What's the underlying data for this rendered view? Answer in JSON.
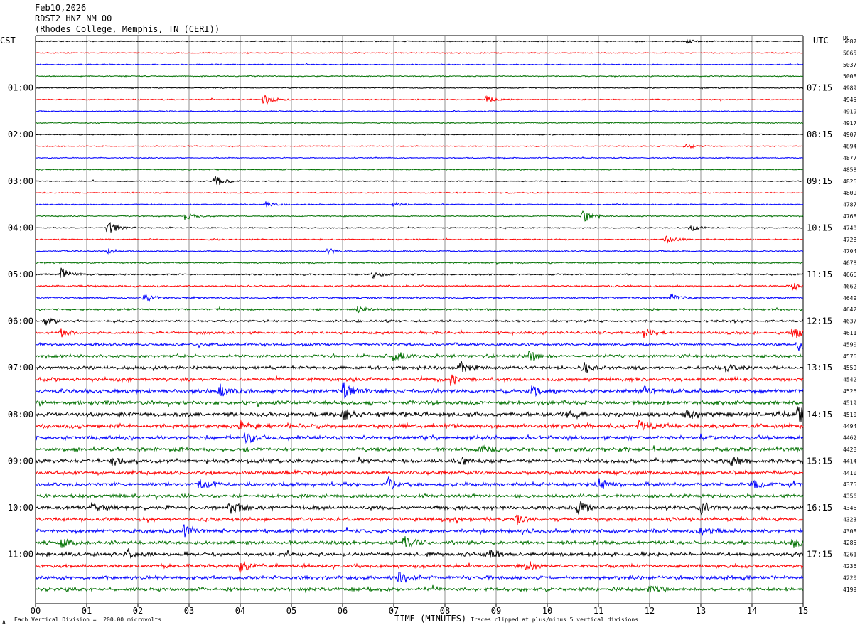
{
  "header": {
    "date": "Feb10,2026",
    "station": "RDST2 HNZ NM 00",
    "location": "(Rhodes College, Memphis, TN (CERI))"
  },
  "labels": {
    "left_zone": "CST",
    "right_zone": "UTC",
    "dc_header": "DC",
    "xlabel": "TIME (MINUTES)",
    "scale_note": "Each Vertical Division =  200.00 microvolts",
    "clip_note": "Traces clipped at plus/minus 5 vertical divisions",
    "corner_mark": "A"
  },
  "colors": {
    "cycle": [
      "#000000",
      "#ff0000",
      "#0000ff",
      "#007000"
    ],
    "grid": "#909090"
  },
  "chart_data": {
    "type": "line",
    "title": "Feb10,2026 RDST2 HNZ NM 00",
    "xlabel": "TIME (MINUTES)",
    "xlim": [
      0,
      15
    ],
    "x_ticks": [
      "00",
      "01",
      "02",
      "03",
      "04",
      "05",
      "06",
      "07",
      "08",
      "09",
      "10",
      "11",
      "12",
      "13",
      "14",
      "15"
    ],
    "rows_per_hour": 4,
    "left_hour_labels": [
      "01:00",
      "02:00",
      "03:00",
      "04:00",
      "05:00",
      "06:00",
      "07:00",
      "08:00",
      "09:00",
      "10:00",
      "11:00"
    ],
    "right_hour_labels": [
      "07:15",
      "08:15",
      "09:15",
      "10:15",
      "11:15",
      "12:15",
      "13:15",
      "14:15",
      "15:15",
      "16:15",
      "17:15"
    ],
    "dc_offsets": [
      5087,
      5065,
      5037,
      5008,
      4989,
      4945,
      4919,
      4917,
      4907,
      4894,
      4877,
      4858,
      4826,
      4809,
      4787,
      4768,
      4748,
      4728,
      4704,
      4678,
      4666,
      4662,
      4649,
      4642,
      4637,
      4611,
      4590,
      4576,
      4559,
      4542,
      4526,
      4519,
      4510,
      4494,
      4462,
      4428,
      4414,
      4410,
      4375,
      4356,
      4346,
      4323,
      4308,
      4285,
      4261,
      4236,
      4220,
      4199
    ],
    "trace_noise": [
      1.0,
      1.0,
      1.0,
      1.0,
      1.0,
      1.0,
      1.0,
      1.0,
      1.0,
      1.0,
      1.0,
      1.0,
      1.0,
      1.1,
      1.1,
      1.1,
      1.1,
      1.2,
      1.3,
      1.3,
      1.5,
      1.6,
      1.7,
      1.8,
      2.0,
      2.4,
      2.6,
      2.8,
      3.0,
      3.3,
      3.6,
      3.6,
      4.0,
      4.0,
      3.8,
      3.6,
      3.6,
      3.4,
      3.4,
      3.2,
      3.6,
      3.4,
      3.4,
      3.2,
      3.4,
      3.2,
      3.4,
      3.2
    ],
    "events": [
      {
        "row": 0,
        "t": 12.7,
        "amp": 3
      },
      {
        "row": 5,
        "t": 4.45,
        "amp": 9
      },
      {
        "row": 5,
        "t": 8.8,
        "amp": 5
      },
      {
        "row": 9,
        "t": 12.7,
        "amp": 4
      },
      {
        "row": 12,
        "t": 3.5,
        "amp": 9
      },
      {
        "row": 14,
        "t": 4.5,
        "amp": 4
      },
      {
        "row": 14,
        "t": 7.0,
        "amp": 4
      },
      {
        "row": 15,
        "t": 2.9,
        "amp": 7
      },
      {
        "row": 15,
        "t": 10.7,
        "amp": 10
      },
      {
        "row": 16,
        "t": 1.4,
        "amp": 11
      },
      {
        "row": 16,
        "t": 12.8,
        "amp": 4
      },
      {
        "row": 17,
        "t": 12.3,
        "amp": 7
      },
      {
        "row": 18,
        "t": 1.4,
        "amp": 4
      },
      {
        "row": 18,
        "t": 5.7,
        "amp": 4
      },
      {
        "row": 20,
        "t": 0.5,
        "amp": 10
      },
      {
        "row": 20,
        "t": 6.6,
        "amp": 5
      },
      {
        "row": 21,
        "t": 14.8,
        "amp": 6
      },
      {
        "row": 22,
        "t": 2.1,
        "amp": 7
      },
      {
        "row": 22,
        "t": 12.4,
        "amp": 6
      },
      {
        "row": 23,
        "t": 6.3,
        "amp": 5
      },
      {
        "row": 24,
        "t": 0.2,
        "amp": 6
      },
      {
        "row": 25,
        "t": 0.5,
        "amp": 6
      },
      {
        "row": 25,
        "t": 11.9,
        "amp": 10
      },
      {
        "row": 25,
        "t": 14.8,
        "amp": 10
      },
      {
        "row": 26,
        "t": 14.9,
        "amp": 8
      },
      {
        "row": 27,
        "t": 7.0,
        "amp": 8
      },
      {
        "row": 27,
        "t": 9.65,
        "amp": 9
      },
      {
        "row": 28,
        "t": 8.3,
        "amp": 11
      },
      {
        "row": 28,
        "t": 10.7,
        "amp": 8
      },
      {
        "row": 28,
        "t": 13.5,
        "amp": 6
      },
      {
        "row": 29,
        "t": 8.1,
        "amp": 8
      },
      {
        "row": 30,
        "t": 3.6,
        "amp": 8
      },
      {
        "row": 30,
        "t": 6.0,
        "amp": 12
      },
      {
        "row": 30,
        "t": 9.7,
        "amp": 8
      },
      {
        "row": 30,
        "t": 11.9,
        "amp": 6
      },
      {
        "row": 32,
        "t": 6.0,
        "amp": 8
      },
      {
        "row": 32,
        "t": 10.4,
        "amp": 7
      },
      {
        "row": 32,
        "t": 12.7,
        "amp": 8
      },
      {
        "row": 32,
        "t": 14.9,
        "amp": 12
      },
      {
        "row": 33,
        "t": 4.0,
        "amp": 8
      },
      {
        "row": 33,
        "t": 11.8,
        "amp": 8
      },
      {
        "row": 34,
        "t": 4.1,
        "amp": 9
      },
      {
        "row": 35,
        "t": 8.7,
        "amp": 6
      },
      {
        "row": 36,
        "t": 1.5,
        "amp": 6
      },
      {
        "row": 36,
        "t": 8.3,
        "amp": 8
      },
      {
        "row": 36,
        "t": 13.6,
        "amp": 7
      },
      {
        "row": 38,
        "t": 3.2,
        "amp": 8
      },
      {
        "row": 38,
        "t": 6.9,
        "amp": 10
      },
      {
        "row": 38,
        "t": 11.0,
        "amp": 7
      },
      {
        "row": 38,
        "t": 14.0,
        "amp": 9
      },
      {
        "row": 40,
        "t": 1.1,
        "amp": 8
      },
      {
        "row": 40,
        "t": 3.8,
        "amp": 9
      },
      {
        "row": 40,
        "t": 10.6,
        "amp": 10
      },
      {
        "row": 40,
        "t": 13.0,
        "amp": 7
      },
      {
        "row": 41,
        "t": 9.4,
        "amp": 7
      },
      {
        "row": 42,
        "t": 2.9,
        "amp": 8
      },
      {
        "row": 42,
        "t": 13.0,
        "amp": 7
      },
      {
        "row": 43,
        "t": 0.5,
        "amp": 7
      },
      {
        "row": 43,
        "t": 7.2,
        "amp": 10
      },
      {
        "row": 43,
        "t": 14.8,
        "amp": 7
      },
      {
        "row": 44,
        "t": 1.8,
        "amp": 7
      },
      {
        "row": 44,
        "t": 8.8,
        "amp": 7
      },
      {
        "row": 45,
        "t": 4.0,
        "amp": 9
      },
      {
        "row": 45,
        "t": 9.6,
        "amp": 8
      },
      {
        "row": 46,
        "t": 7.1,
        "amp": 9
      },
      {
        "row": 47,
        "t": 12.0,
        "amp": 7
      }
    ]
  }
}
